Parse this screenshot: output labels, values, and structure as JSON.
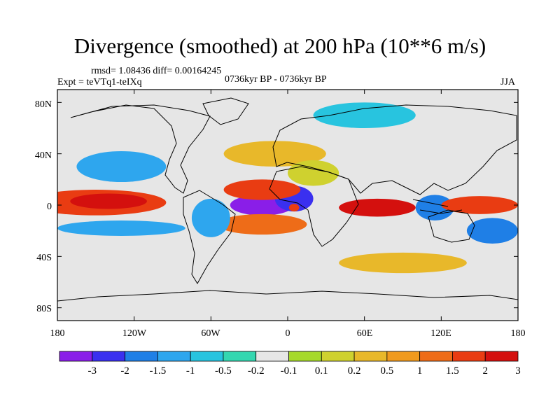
{
  "title": "Divergence (smoothed) at 200 hPa (10**6 m/s)",
  "stats_line": "rmsd= 1.08436 diff= 0.00164245",
  "expt_line": "Expt = teVTq1-teIXq",
  "period_line": "0736kyr BP - 0736kyr BP",
  "season": "JJA",
  "y_ticks": [
    "80N",
    "40N",
    "0",
    "40S",
    "80S"
  ],
  "x_ticks": [
    "180",
    "120W",
    "60W",
    "0",
    "60E",
    "120E",
    "180"
  ],
  "colorbar": {
    "colors": [
      "#8a1ee8",
      "#3a30ef",
      "#1f7fe6",
      "#2ea6ee",
      "#28c4df",
      "#34d7b0",
      "#e6e6e6",
      "#a6d92b",
      "#cfd12f",
      "#e8b82a",
      "#f09a1e",
      "#ee6c18",
      "#e93c12",
      "#d4100e"
    ],
    "labels": [
      "-3",
      "-2",
      "-1.5",
      "-1",
      "-0.5",
      "-0.2",
      "-0.1",
      "0.1",
      "0.2",
      "0.5",
      "1",
      "1.5",
      "2",
      "3"
    ]
  },
  "map_data": {
    "lon_range": [
      -180,
      180
    ],
    "lat_range": [
      -90,
      90
    ],
    "features": [
      {
        "name": "tropical-pacific-east-positive",
        "lon": -150,
        "lat": 2,
        "rlon": 55,
        "rlat": 10,
        "level": 12
      },
      {
        "name": "pacific-central-core",
        "lon": -140,
        "lat": 3,
        "rlon": 30,
        "rlat": 6,
        "level": 13
      },
      {
        "name": "pacific-south-negative-band",
        "lon": -130,
        "lat": -18,
        "rlon": 50,
        "rlat": 6,
        "level": 3
      },
      {
        "name": "north-pacific-negative",
        "lon": -130,
        "lat": 30,
        "rlon": 35,
        "rlat": 12,
        "level": 3
      },
      {
        "name": "atlantic-equatorial-negative",
        "lon": -20,
        "lat": 0,
        "rlon": 25,
        "rlat": 8,
        "level": 0
      },
      {
        "name": "west-africa-negative",
        "lon": 5,
        "lat": 5,
        "rlon": 15,
        "rlat": 10,
        "level": 1
      },
      {
        "name": "north-atlantic-positive",
        "lon": -20,
        "lat": 12,
        "rlon": 30,
        "rlat": 8,
        "level": 12
      },
      {
        "name": "south-atlantic-positive",
        "lon": -20,
        "lat": -15,
        "rlon": 35,
        "rlat": 8,
        "level": 11
      },
      {
        "name": "congo-positive-dot",
        "lon": 5,
        "lat": -2,
        "rlon": 4,
        "rlat": 3,
        "level": 12
      },
      {
        "name": "indian-ocean-positive",
        "lon": 70,
        "lat": -2,
        "rlon": 30,
        "rlat": 7,
        "level": 13
      },
      {
        "name": "maritime-continent-negative",
        "lon": 115,
        "lat": -2,
        "rlon": 15,
        "rlat": 10,
        "level": 2
      },
      {
        "name": "west-pacific-positive",
        "lon": 150,
        "lat": 0,
        "rlon": 30,
        "rlat": 7,
        "level": 12
      },
      {
        "name": "north-atlantic-midlat-positive",
        "lon": -10,
        "lat": 40,
        "rlon": 40,
        "rlat": 10,
        "level": 9
      },
      {
        "name": "sahara-positive",
        "lon": 20,
        "lat": 25,
        "rlon": 20,
        "rlat": 10,
        "level": 8
      },
      {
        "name": "arctic-negative",
        "lon": 60,
        "lat": 70,
        "rlon": 40,
        "rlat": 10,
        "level": 4
      },
      {
        "name": "southern-ocean-positive",
        "lon": 90,
        "lat": -45,
        "rlon": 50,
        "rlat": 8,
        "level": 9
      },
      {
        "name": "south-pacific-midlat-negative",
        "lon": 160,
        "lat": -20,
        "rlon": 20,
        "rlat": 10,
        "level": 2
      },
      {
        "name": "south-america-negative",
        "lon": -60,
        "lat": -10,
        "rlon": 15,
        "rlat": 15,
        "level": 3
      }
    ]
  }
}
